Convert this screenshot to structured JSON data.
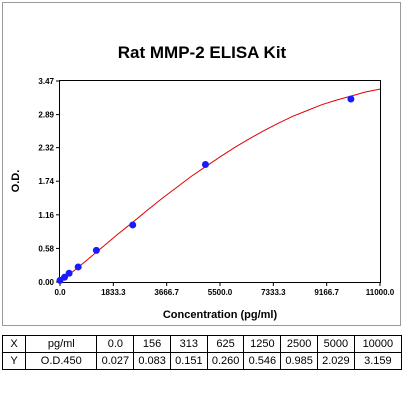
{
  "chart_data": {
    "type": "scatter",
    "title": "Rat MMP-2 ELISA Kit",
    "xlabel": "Concentration (pg/ml)",
    "ylabel": "O.D.",
    "xlim": [
      0,
      11000
    ],
    "ylim": [
      0,
      3.47
    ],
    "x_ticks": [
      "0.0",
      "1833.3",
      "3666.7",
      "5500.0",
      "7333.3",
      "9166.7",
      "11000.0"
    ],
    "x_tick_values": [
      0,
      1833.3,
      3666.7,
      5500,
      7333.3,
      9166.7,
      11000
    ],
    "y_ticks": [
      "0.00",
      "0.58",
      "1.16",
      "1.74",
      "2.32",
      "2.89",
      "3.47"
    ],
    "y_tick_values": [
      0,
      0.58,
      1.16,
      1.74,
      2.32,
      2.89,
      3.47
    ],
    "points": {
      "x": [
        0,
        156,
        313,
        625,
        1250,
        2500,
        5000,
        10000
      ],
      "y": [
        0.027,
        0.083,
        0.151,
        0.26,
        0.546,
        0.985,
        2.029,
        3.159
      ]
    },
    "fit_curve": {
      "x": [
        0,
        500,
        1000,
        1500,
        2000,
        2500,
        3000,
        3500,
        4000,
        4500,
        5000,
        5500,
        6000,
        6500,
        7000,
        7500,
        8000,
        8500,
        9000,
        9500,
        10000,
        10500,
        11000
      ],
      "y": [
        0.02,
        0.2,
        0.41,
        0.62,
        0.83,
        1.03,
        1.24,
        1.44,
        1.63,
        1.82,
        1.99,
        2.16,
        2.32,
        2.47,
        2.61,
        2.74,
        2.86,
        2.96,
        3.06,
        3.14,
        3.21,
        3.28,
        3.33
      ]
    },
    "point_color": "#1a1aff",
    "curve_color": "#e00000",
    "grid": false,
    "legend": "none"
  },
  "table": {
    "rows": [
      [
        "X",
        "pg/ml",
        "0.0",
        "156",
        "313",
        "625",
        "1250",
        "2500",
        "5000",
        "10000"
      ],
      [
        "Y",
        "O.D.450",
        "0.027",
        "0.083",
        "0.151",
        "0.260",
        "0.546",
        "0.985",
        "2.029",
        "3.159"
      ]
    ]
  }
}
